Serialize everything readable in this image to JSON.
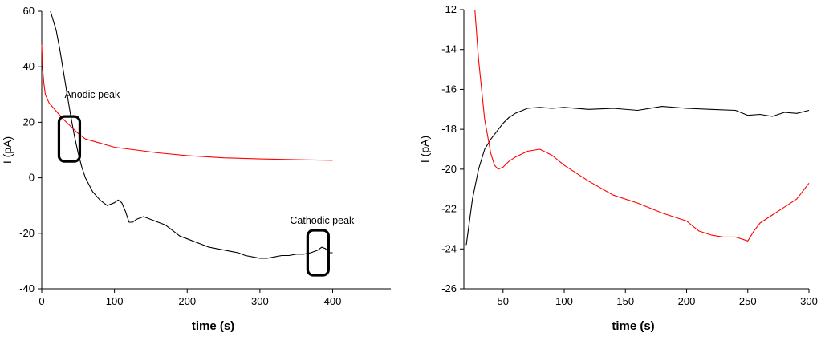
{
  "chart_data": [
    {
      "type": "line",
      "xlabel": "time (s)",
      "ylabel": "I (pA)",
      "xlim": [
        0,
        480
      ],
      "ylim": [
        -40,
        60
      ],
      "xticks": [
        0,
        100,
        200,
        300,
        400
      ],
      "yticks": [
        -40,
        -20,
        0,
        20,
        40,
        60
      ],
      "grid": false,
      "annotations": [
        {
          "text": "Anodic peak",
          "x": 38,
          "y": 14
        },
        {
          "text": "Cathodic peak",
          "x": 380,
          "y": -27
        }
      ],
      "series": [
        {
          "color": "#000000",
          "x": [
            12,
            20,
            25,
            30,
            35,
            40,
            45,
            50,
            55,
            60,
            70,
            80,
            90,
            100,
            105,
            110,
            115,
            120,
            125,
            130,
            140,
            150,
            160,
            170,
            180,
            190,
            200,
            210,
            220,
            230,
            240,
            250,
            260,
            270,
            280,
            290,
            300,
            310,
            320,
            330,
            340,
            350,
            360,
            370,
            380,
            385,
            390,
            395,
            400
          ],
          "y": [
            60,
            53,
            46,
            38,
            30,
            22,
            15,
            9,
            4,
            0,
            -5,
            -8,
            -10,
            -9,
            -8,
            -9,
            -12,
            -16,
            -16,
            -15,
            -14,
            -15,
            -16,
            -17,
            -19,
            -21,
            -22,
            -23,
            -24,
            -25,
            -25.5,
            -26,
            -26.5,
            -27,
            -28,
            -28.5,
            -29,
            -29,
            -28.5,
            -28,
            -28,
            -27.5,
            -27.5,
            -27,
            -26,
            -25,
            -25.5,
            -27,
            -27
          ]
        },
        {
          "color": "#ff0000",
          "x": [
            0,
            1,
            3,
            5,
            10,
            20,
            30,
            40,
            50,
            60,
            80,
            100,
            130,
            160,
            200,
            250,
            300,
            350,
            400
          ],
          "y": [
            48,
            40,
            34,
            30,
            27,
            24,
            21,
            18.5,
            16,
            14,
            12.5,
            11,
            10,
            9,
            8,
            7.2,
            6.8,
            6.5,
            6.3
          ]
        }
      ]
    },
    {
      "type": "line",
      "xlabel": "time (s)",
      "ylabel": "I (pA)",
      "xlim": [
        18,
        300
      ],
      "ylim": [
        -26,
        -12
      ],
      "xticks": [
        50,
        100,
        150,
        200,
        250,
        300
      ],
      "yticks": [
        -26,
        -24,
        -22,
        -20,
        -18,
        -16,
        -14,
        -12
      ],
      "grid": false,
      "series": [
        {
          "color": "#000000",
          "x": [
            20,
            25,
            30,
            35,
            40,
            45,
            50,
            55,
            60,
            70,
            80,
            90,
            100,
            120,
            140,
            160,
            180,
            200,
            220,
            240,
            250,
            260,
            270,
            280,
            290,
            300
          ],
          "y": [
            -23.8,
            -21.5,
            -20,
            -19,
            -18.5,
            -18.1,
            -17.7,
            -17.4,
            -17.2,
            -16.95,
            -16.9,
            -16.95,
            -16.9,
            -17,
            -16.95,
            -17.05,
            -16.85,
            -16.95,
            -17,
            -17.05,
            -17.3,
            -17.25,
            -17.35,
            -17.15,
            -17.2,
            -17.05
          ]
        },
        {
          "color": "#ff0000",
          "x": [
            27,
            30,
            35,
            40,
            43,
            46,
            50,
            55,
            60,
            70,
            80,
            90,
            100,
            120,
            140,
            160,
            180,
            200,
            210,
            220,
            230,
            240,
            250,
            255,
            260,
            270,
            280,
            290,
            300
          ],
          "y": [
            -12,
            -14.5,
            -17.5,
            -19.2,
            -19.8,
            -20,
            -19.9,
            -19.6,
            -19.4,
            -19.1,
            -19,
            -19.3,
            -19.8,
            -20.6,
            -21.3,
            -21.7,
            -22.2,
            -22.6,
            -23.1,
            -23.3,
            -23.4,
            -23.4,
            -23.6,
            -23.1,
            -22.7,
            -22.3,
            -21.9,
            -21.5,
            -20.7
          ]
        }
      ]
    }
  ]
}
